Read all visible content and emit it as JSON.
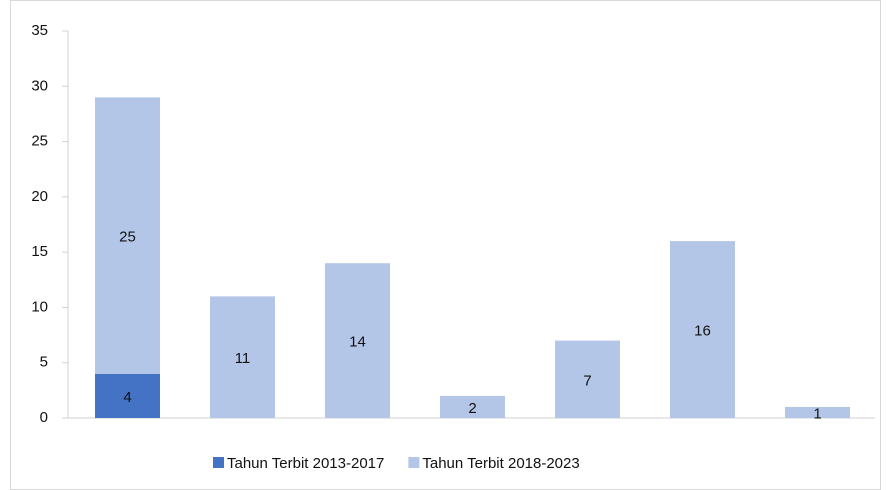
{
  "chart_data": {
    "type": "stacked-bar",
    "categories": [
      null,
      null,
      null,
      null,
      null,
      null,
      null
    ],
    "series": [
      {
        "name": "Tahun Terbit 2013-2017",
        "color": "#4472c4",
        "values": [
          4,
          null,
          null,
          null,
          null,
          null,
          null
        ]
      },
      {
        "name": "Tahun Terbit 2018-2023",
        "color": "#b4c6e7",
        "values": [
          25,
          11,
          14,
          2,
          7,
          16,
          1
        ]
      }
    ],
    "ylim": [
      0,
      35
    ],
    "yticks": [
      0,
      5,
      10,
      15,
      20,
      25,
      30,
      35
    ],
    "grid": false,
    "legend": "bottom"
  }
}
